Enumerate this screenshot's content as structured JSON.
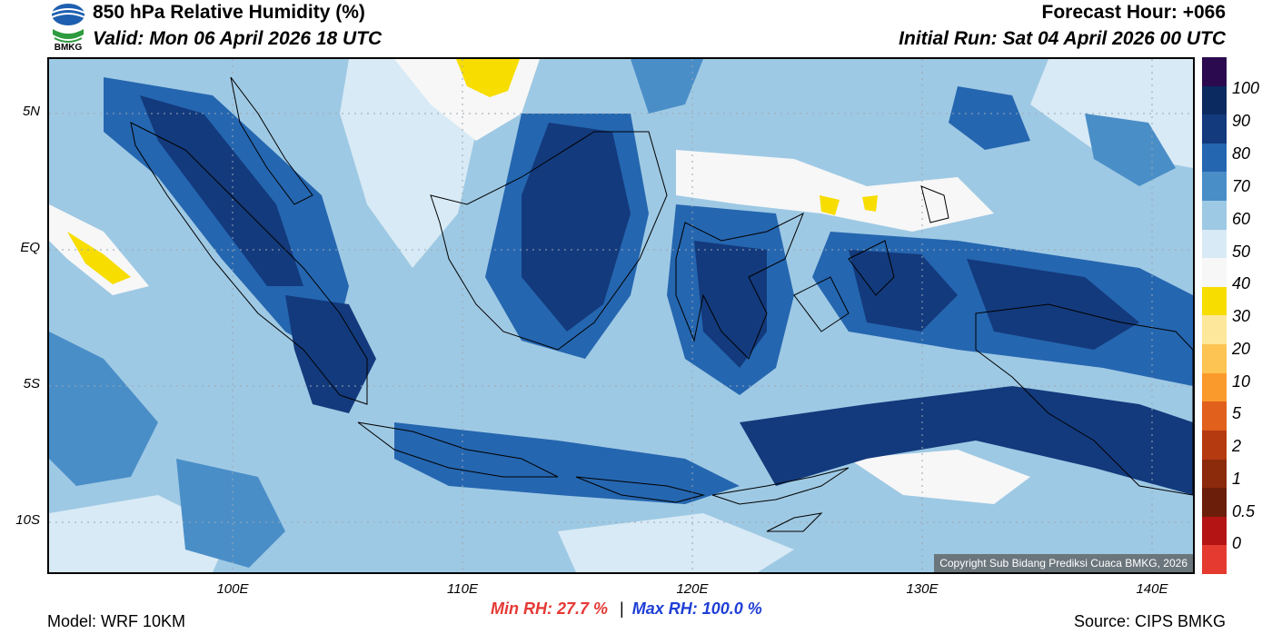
{
  "header": {
    "title": "850 hPa Relative Humidity (%)",
    "valid": "Valid: Mon 06 April 2026 18 UTC",
    "forecast_hour": "Forecast Hour: +066",
    "initial_run": "Initial Run: Sat 04 April 2026 00 UTC",
    "logo_text": "BMKG"
  },
  "map": {
    "lat_labels": [
      "5N",
      "EQ",
      "5S",
      "10S"
    ],
    "lon_labels": [
      "100E",
      "110E",
      "120E",
      "130E",
      "140E"
    ],
    "copyright": "Copyright Sub Bidang Prediksi Cuaca BMKG, 2026"
  },
  "colorbar": {
    "labels": [
      "100",
      "90",
      "80",
      "70",
      "60",
      "50",
      "40",
      "30",
      "20",
      "10",
      "5",
      "2",
      "1",
      "0.5",
      "0"
    ],
    "colors": [
      "#2b0a4f",
      "#0b2a60",
      "#133a7c",
      "#2566b0",
      "#4a8ec8",
      "#9ec9e4",
      "#d8eaf5",
      "#f7f7f7",
      "#f7dd00",
      "#fde79a",
      "#fdc453",
      "#fb9a2c",
      "#e0601c",
      "#b53a10",
      "#8c2a0c",
      "#6b1f0a",
      "#b51415",
      "#e53a2f"
    ]
  },
  "footer": {
    "model": "Model: WRF 10KM",
    "min_rh": "Min RH:  27.7 %",
    "separator": "|",
    "max_rh": "Max RH: 100.0 %",
    "source": "Source: CIPS BMKG"
  }
}
